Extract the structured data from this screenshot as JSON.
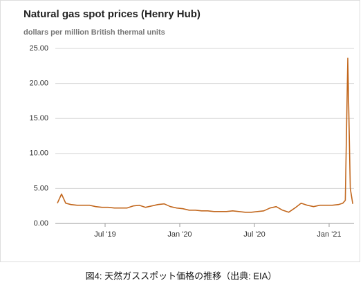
{
  "chart_data": {
    "type": "line",
    "title": "Natural gas spot prices (Henry Hub)",
    "subtitle": "dollars per million British thermal units",
    "caption": "図4: 天然ガススポット価格の推移（出典: EIA）",
    "x": [
      "2019-03",
      "2019-03",
      "2019-03",
      "2019-04",
      "2019-04",
      "2019-05",
      "2019-05",
      "2019-06",
      "2019-06",
      "2019-07",
      "2019-07",
      "2019-08",
      "2019-08",
      "2019-09",
      "2019-09",
      "2019-10",
      "2019-10",
      "2019-11",
      "2019-11",
      "2019-12",
      "2019-12",
      "2020-01",
      "2020-01",
      "2020-02",
      "2020-02",
      "2020-03",
      "2020-03",
      "2020-04",
      "2020-04",
      "2020-05",
      "2020-05",
      "2020-06",
      "2020-06",
      "2020-07",
      "2020-07",
      "2020-08",
      "2020-08",
      "2020-09",
      "2020-09",
      "2020-10",
      "2020-10",
      "2020-11",
      "2020-11",
      "2020-12",
      "2020-12",
      "2021-01",
      "2021-01",
      "2021-02",
      "2021-02",
      "2021-02",
      "2021-02",
      "2021-02"
    ],
    "series": [
      {
        "name": "Henry Hub",
        "color": "#c2671d",
        "values": [
          2.9,
          4.2,
          2.9,
          2.7,
          2.6,
          2.6,
          2.6,
          2.4,
          2.3,
          2.3,
          2.2,
          2.2,
          2.2,
          2.5,
          2.6,
          2.3,
          2.5,
          2.7,
          2.8,
          2.4,
          2.2,
          2.1,
          1.9,
          1.9,
          1.8,
          1.8,
          1.7,
          1.7,
          1.7,
          1.8,
          1.7,
          1.6,
          1.6,
          1.7,
          1.8,
          2.2,
          2.4,
          1.9,
          1.6,
          2.2,
          2.9,
          2.6,
          2.4,
          2.6,
          2.6,
          2.6,
          2.7,
          2.9,
          3.3,
          23.6,
          5.0,
          2.8
        ]
      }
    ],
    "xlim": [
      "2019-03",
      "2021-03"
    ],
    "xticks": [
      {
        "value": "2019-07",
        "label": "Jul '19"
      },
      {
        "value": "2020-01",
        "label": "Jan '20"
      },
      {
        "value": "2020-07",
        "label": "Jul '20"
      },
      {
        "value": "2021-01",
        "label": "Jan '21"
      }
    ],
    "ylim": [
      0,
      25
    ],
    "yticks": [
      {
        "value": 0,
        "label": "0.00"
      },
      {
        "value": 5,
        "label": "5.00"
      },
      {
        "value": 10,
        "label": "10.00"
      },
      {
        "value": 15,
        "label": "15.00"
      },
      {
        "value": 20,
        "label": "20.00"
      },
      {
        "value": 25,
        "label": "25.00"
      }
    ],
    "grid": true
  }
}
